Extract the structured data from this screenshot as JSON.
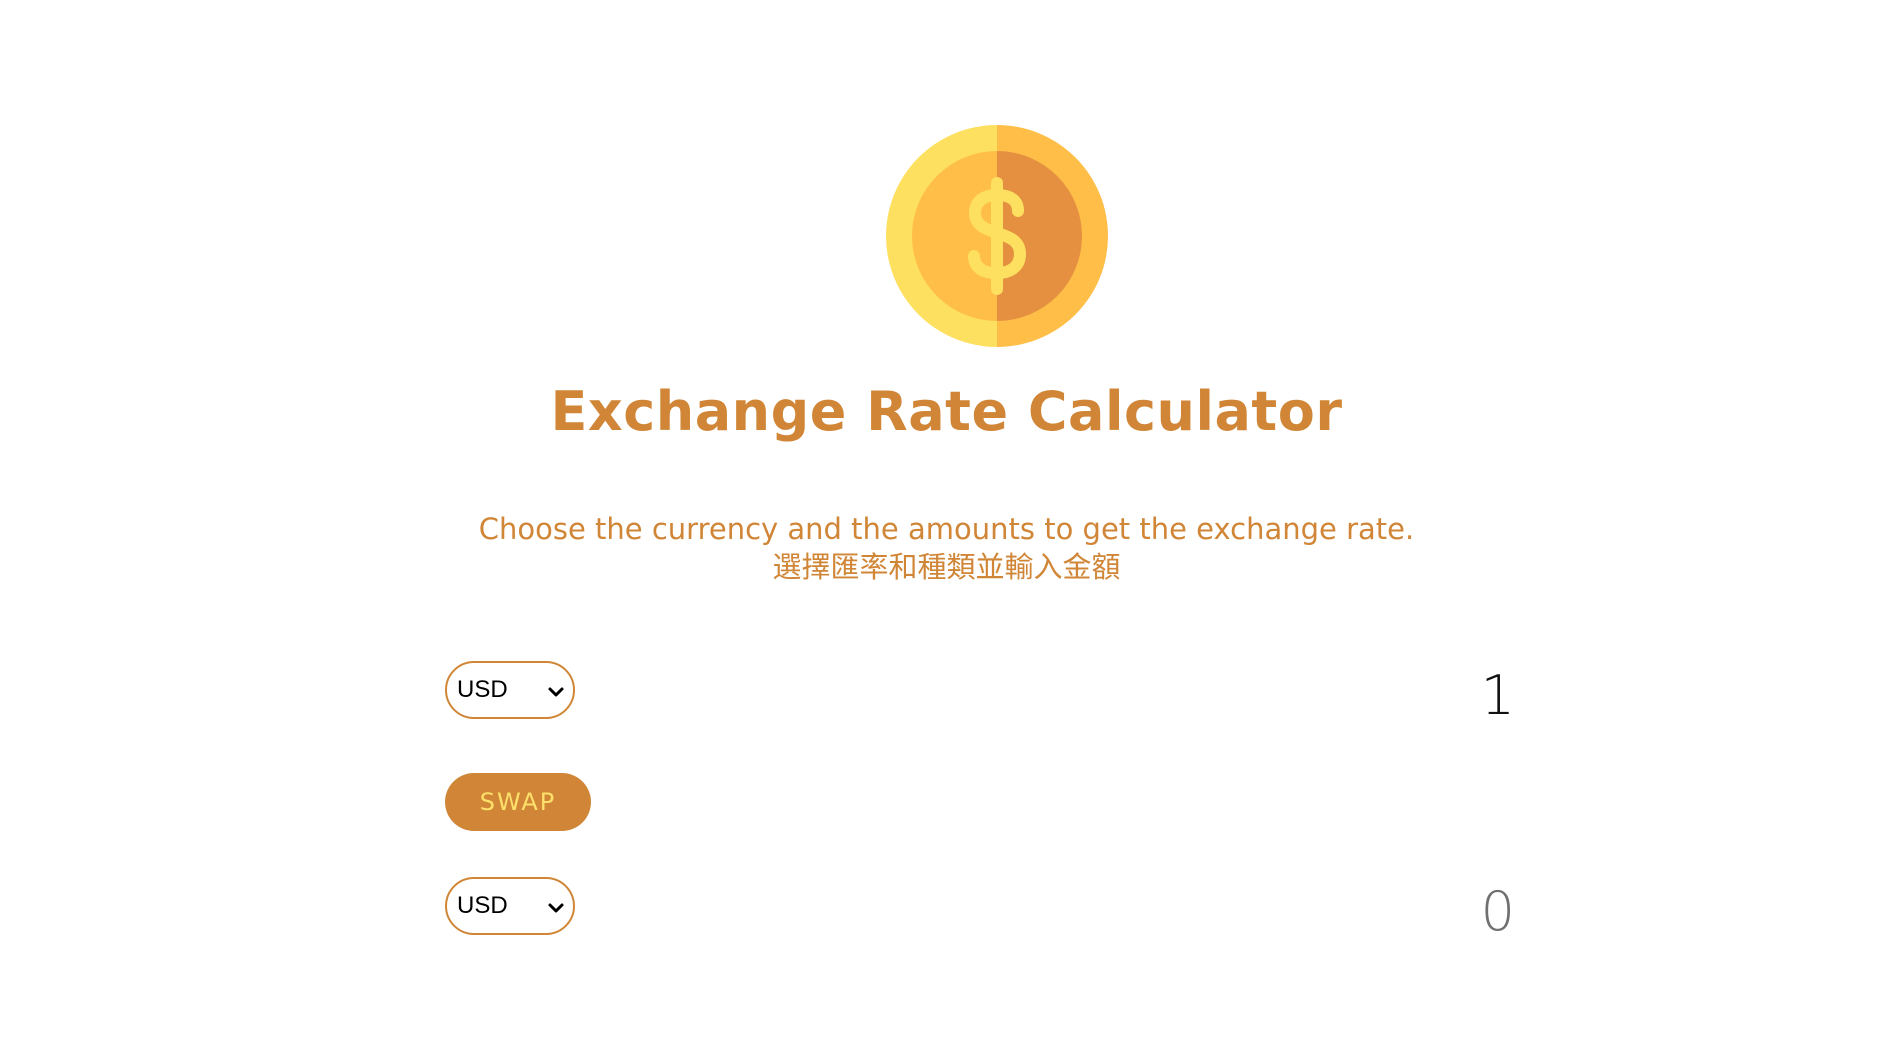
{
  "header": {
    "title": "Exchange Rate Calculator",
    "subtitle_en": "Choose the currency and the amounts to get the exchange rate.",
    "subtitle_zh": "選擇匯率和種類並輸入金額"
  },
  "converter": {
    "from": {
      "currency": "USD",
      "amount": "1"
    },
    "to": {
      "currency": "USD",
      "amount": "0"
    },
    "swap_label": "SWAP"
  },
  "colors": {
    "accent": "#d08636",
    "swap_text": "#fde06a",
    "coin_light": "#fde05f",
    "coin_mid": "#ffbe47",
    "coin_dark": "#e59040"
  },
  "icons": {
    "logo": "coin-dollar-icon",
    "select_arrow": "chevron-down-icon"
  }
}
